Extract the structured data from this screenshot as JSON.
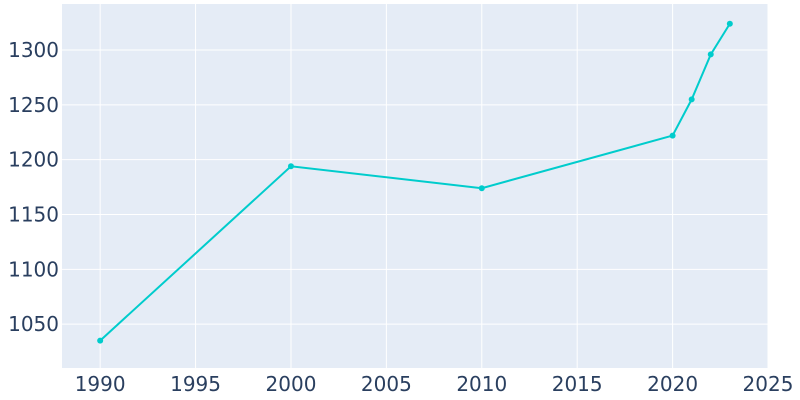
{
  "chart_data": {
    "type": "line",
    "title": "",
    "xlabel": "",
    "ylabel": "",
    "x": [
      1990,
      2000,
      2010,
      2020,
      2021,
      2022,
      2023
    ],
    "series": [
      {
        "values": [
          1035,
          1194,
          1174,
          1222,
          1255,
          1296,
          1324
        ]
      }
    ],
    "xlim": [
      1988,
      2025
    ],
    "ylim": [
      1010,
      1342
    ],
    "x_ticks": [
      1990,
      1995,
      2000,
      2005,
      2010,
      2015,
      2020,
      2025
    ],
    "y_ticks": [
      1050,
      1100,
      1150,
      1200,
      1250,
      1300
    ],
    "grid": true,
    "legend": "none",
    "colors": {
      "plot_bg": "#e5ecf6",
      "line": "#00cccc",
      "grid": "#ffffff",
      "tick_text": "#2a3f5f"
    }
  }
}
